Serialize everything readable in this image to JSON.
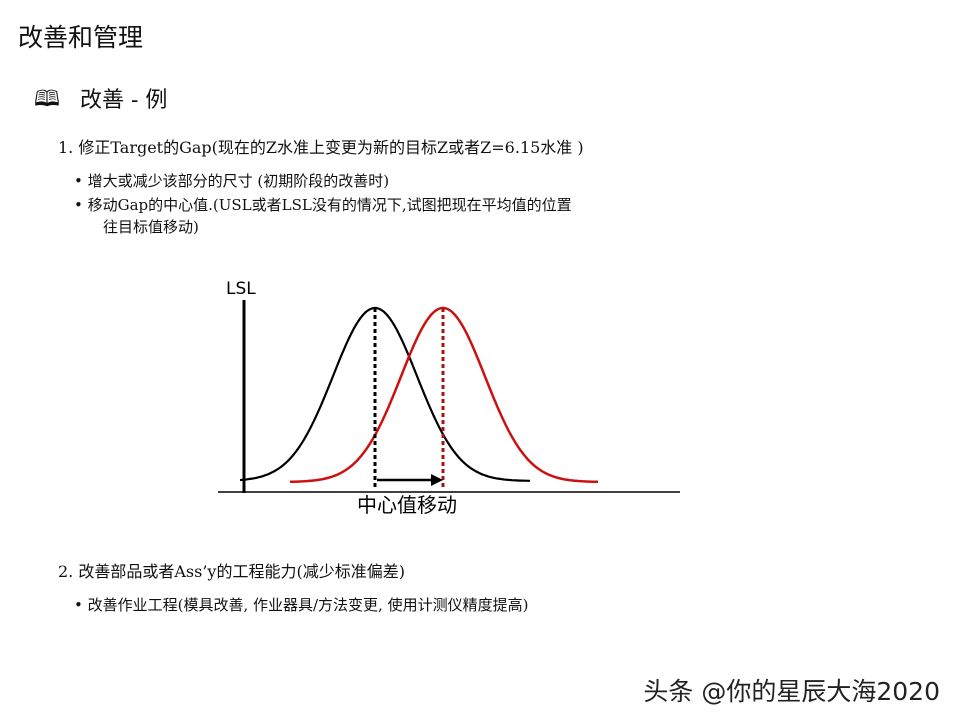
{
  "title": "改善和管理",
  "section": {
    "icon": "book-icon",
    "heading": "改善 - 例"
  },
  "items": [
    {
      "label": "1.  修正Target的Gap(现在的Z水准上变更为新的目标Z或者Z=6.15水准 )",
      "bullets": [
        "• 增大或减少该部分的尺寸 (初期阶段的改善时)",
        "• 移动Gap的中心值.(USL或者LSL没有的情况下,试图把现在平均值的位置",
        "往目标值移动)"
      ]
    },
    {
      "label": "2.  改善部品或者Ass’y的工程能力(减少标准偏差)",
      "bullets": [
        "• 改善作业工程(模具改善, 作业器具/方法变更, 使用计测仪精度提高)"
      ]
    }
  ],
  "diagram": {
    "lsl_label": "LSL",
    "shift_label": "中心值移动",
    "colors": {
      "current": "#000000",
      "target": "#cc1111"
    }
  },
  "watermark": "头条 @你的星辰大海2020"
}
